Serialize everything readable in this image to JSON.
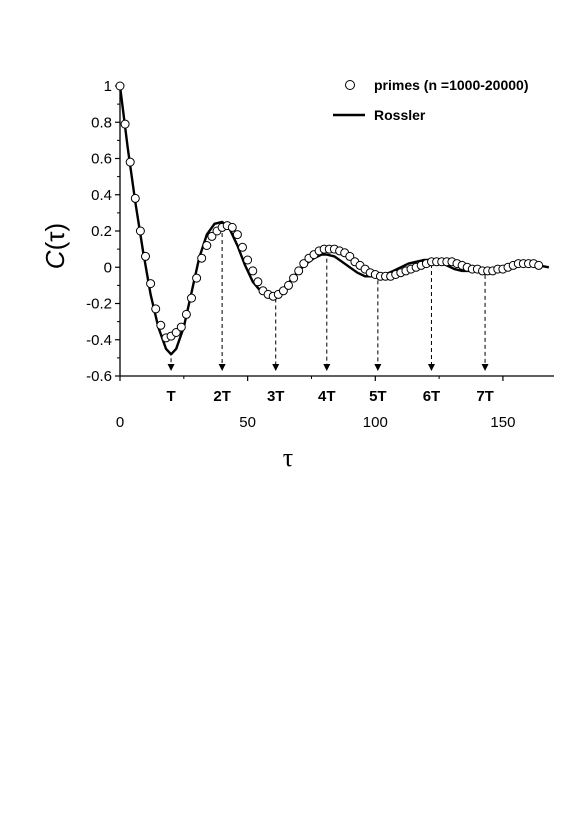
{
  "chart_data": {
    "type": "line",
    "xlabel": "τ",
    "ylabel_main": "C",
    "ylabel_arg": "(τ)",
    "xlim": [
      0,
      170
    ],
    "ylim": [
      -0.6,
      1.0
    ],
    "x_ticks": [
      0,
      50,
      100,
      150
    ],
    "x_tick_labels": [
      "0",
      "50",
      "100",
      "150"
    ],
    "y_ticks": [
      1,
      0.8,
      0.6,
      0.4,
      0.2,
      0,
      -0.2,
      -0.4,
      -0.6
    ],
    "y_tick_labels": [
      "1",
      "0.8",
      "0.6",
      "0.4",
      "0.2",
      "0",
      "-0.2",
      "-0.4",
      "-0.6"
    ],
    "grid": false,
    "legend_position": "top-right",
    "period_markers": [
      {
        "label": "T",
        "x": 20,
        "y": -0.48
      },
      {
        "label": "2T",
        "x": 40,
        "y": 0.25
      },
      {
        "label": "3T",
        "x": 61,
        "y": -0.15
      },
      {
        "label": "4T",
        "x": 81,
        "y": 0.07
      },
      {
        "label": "5T",
        "x": 101,
        "y": -0.05
      },
      {
        "label": "6T",
        "x": 122,
        "y": 0.04
      },
      {
        "label": "7T",
        "x": 143,
        "y": -0.02
      }
    ],
    "series": [
      {
        "name": "primes (n =1000-20000)",
        "style": "markers",
        "marker": "open-circle",
        "x": [
          0,
          2,
          4,
          6,
          8,
          10,
          12,
          14,
          16,
          18,
          20,
          22,
          24,
          26,
          28,
          30,
          32,
          34,
          36,
          38,
          40,
          42,
          44,
          46,
          48,
          50,
          52,
          54,
          56,
          58,
          60,
          62,
          64,
          66,
          68,
          70,
          72,
          74,
          76,
          78,
          80,
          82,
          84,
          86,
          88,
          90,
          92,
          94,
          96,
          98,
          100,
          102,
          104,
          106,
          108,
          110,
          112,
          114,
          116,
          118,
          120,
          122,
          124,
          126,
          128,
          130,
          132,
          134,
          136,
          138,
          140,
          142,
          144,
          146,
          148,
          150,
          152,
          154,
          156,
          158,
          160,
          162,
          164
        ],
        "y": [
          1.0,
          0.79,
          0.58,
          0.38,
          0.2,
          0.06,
          -0.09,
          -0.23,
          -0.32,
          -0.39,
          -0.38,
          -0.36,
          -0.33,
          -0.26,
          -0.17,
          -0.06,
          0.05,
          0.12,
          0.17,
          0.2,
          0.22,
          0.23,
          0.22,
          0.18,
          0.11,
          0.04,
          -0.02,
          -0.08,
          -0.13,
          -0.15,
          -0.16,
          -0.15,
          -0.13,
          -0.1,
          -0.06,
          -0.02,
          0.02,
          0.05,
          0.07,
          0.09,
          0.1,
          0.1,
          0.1,
          0.09,
          0.08,
          0.06,
          0.03,
          0.01,
          -0.01,
          -0.03,
          -0.04,
          -0.05,
          -0.05,
          -0.05,
          -0.04,
          -0.03,
          -0.02,
          -0.01,
          0.0,
          0.01,
          0.02,
          0.03,
          0.03,
          0.03,
          0.03,
          0.03,
          0.02,
          0.01,
          0.0,
          -0.01,
          -0.01,
          -0.02,
          -0.02,
          -0.02,
          -0.01,
          -0.01,
          0.0,
          0.01,
          0.02,
          0.02,
          0.02,
          0.02,
          0.01
        ]
      },
      {
        "name": "Rossler",
        "style": "line",
        "x": [
          0,
          3,
          6,
          9,
          12,
          15,
          18,
          20,
          22,
          25,
          28,
          31,
          34,
          37,
          40,
          43,
          46,
          49,
          52,
          55,
          58,
          61,
          64,
          67,
          70,
          73,
          76,
          79,
          81,
          84,
          87,
          90,
          93,
          96,
          99,
          101,
          104,
          107,
          110,
          113,
          116,
          119,
          122,
          125,
          128,
          131,
          134,
          137,
          140,
          143,
          146,
          149,
          152,
          155,
          158,
          161,
          164,
          168
        ],
        "y": [
          1.0,
          0.66,
          0.36,
          0.09,
          -0.15,
          -0.33,
          -0.45,
          -0.48,
          -0.45,
          -0.33,
          -0.14,
          0.05,
          0.18,
          0.24,
          0.25,
          0.21,
          0.12,
          0.01,
          -0.08,
          -0.13,
          -0.15,
          -0.15,
          -0.12,
          -0.07,
          -0.02,
          0.02,
          0.05,
          0.07,
          0.07,
          0.06,
          0.03,
          0.0,
          -0.03,
          -0.05,
          -0.05,
          -0.05,
          -0.04,
          -0.02,
          0.0,
          0.02,
          0.03,
          0.04,
          0.04,
          0.03,
          0.01,
          -0.01,
          -0.02,
          -0.02,
          -0.02,
          -0.02,
          -0.01,
          0.0,
          0.01,
          0.02,
          0.02,
          0.02,
          0.01,
          0.0
        ]
      }
    ]
  }
}
